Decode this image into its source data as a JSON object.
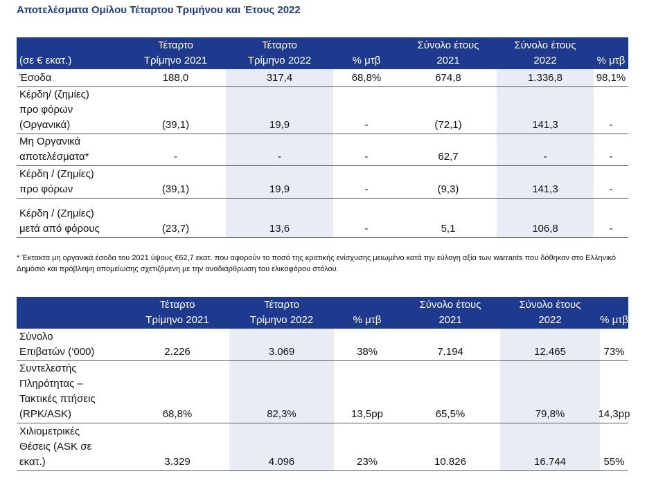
{
  "title": "Αποτελέσματα Ομίλου Τέταρτου Τριμήνου και Έτους 2022",
  "table1": {
    "headers": [
      "(σε € εκατ.)",
      "Τέταρτο\nΤρίμηνο 2021",
      "Τέταρτο\nΤρίμηνο 2022",
      "% μτβ",
      "Σύνολο έτους\n2021",
      "Σύνολο έτους\n2022",
      "% μτβ"
    ],
    "rows": [
      {
        "label": "Έσοδα",
        "values": [
          "188,0",
          "317,4",
          "68,8%",
          "674,8",
          "1.336,8",
          "98,1%"
        ]
      },
      {
        "label": "Κέρδη/ (ζημίες)\nπρο φόρων\n(Οργανικά)",
        "values": [
          "(39,1)",
          "19,9",
          "-",
          "(72,1)",
          "141,3",
          "-"
        ]
      },
      {
        "label": "Μη Οργανικά\nαποτελέσματα*",
        "values": [
          "-",
          "-",
          "-",
          "62,7",
          "-",
          "-"
        ]
      },
      {
        "label": "Κέρδη / (Ζημίες)\nπρο φόρων",
        "values": [
          "(39,1)",
          "19,9",
          "-",
          "(9,3)",
          "141,3",
          "-"
        ]
      },
      {
        "label": "Κέρδη / (Ζημίες)\nμετά από φόρους",
        "values": [
          "(23,7)",
          "13,6",
          "-",
          "5,1",
          "106,8",
          "-"
        ]
      }
    ]
  },
  "footnote": "* Έκτακτα μη οργανικά έσοδα του 2021 ύψους €62,7 εκατ. που αφορούν το ποσό της κρατικής ενίσχυσης μειωμένο κατά την εύλογη αξία των warrants που δόθηκαν στο Ελληνικό Δημόσιο και πρόβλεψη απομείωσης σχετιζόμενη με την αναδιάρθρωση του ελικοφόρου στόλου.",
  "table2": {
    "headers": [
      "",
      "Τέταρτο\nΤρίμηνο 2021",
      "Τέταρτο\nΤρίμηνο 2022",
      "% μτβ",
      "Σύνολο έτους\n2021",
      "Σύνολο έτους\n2022",
      "% μτβ"
    ],
    "rows": [
      {
        "label": "Σύνολο\nΕπιβατών (‘000)",
        "values": [
          "2.226",
          "3.069",
          "38%",
          "7.194",
          "12.465",
          "73%"
        ]
      },
      {
        "label": "Συντελεστής\nΠληρότητας –\nΤακτικές πτήσεις\n(RPK/ASK)",
        "values": [
          "68,8%",
          "82,3%",
          "13,5pp",
          "65,5%",
          "79,8%",
          "14,3pp"
        ]
      },
      {
        "label": "Χιλιομετρικές\nΘέσεις (ASK σε\nεκατ.)",
        "values": [
          "3.329",
          "4.096",
          "23%",
          "10.826",
          "16.744",
          "55%"
        ]
      }
    ]
  }
}
